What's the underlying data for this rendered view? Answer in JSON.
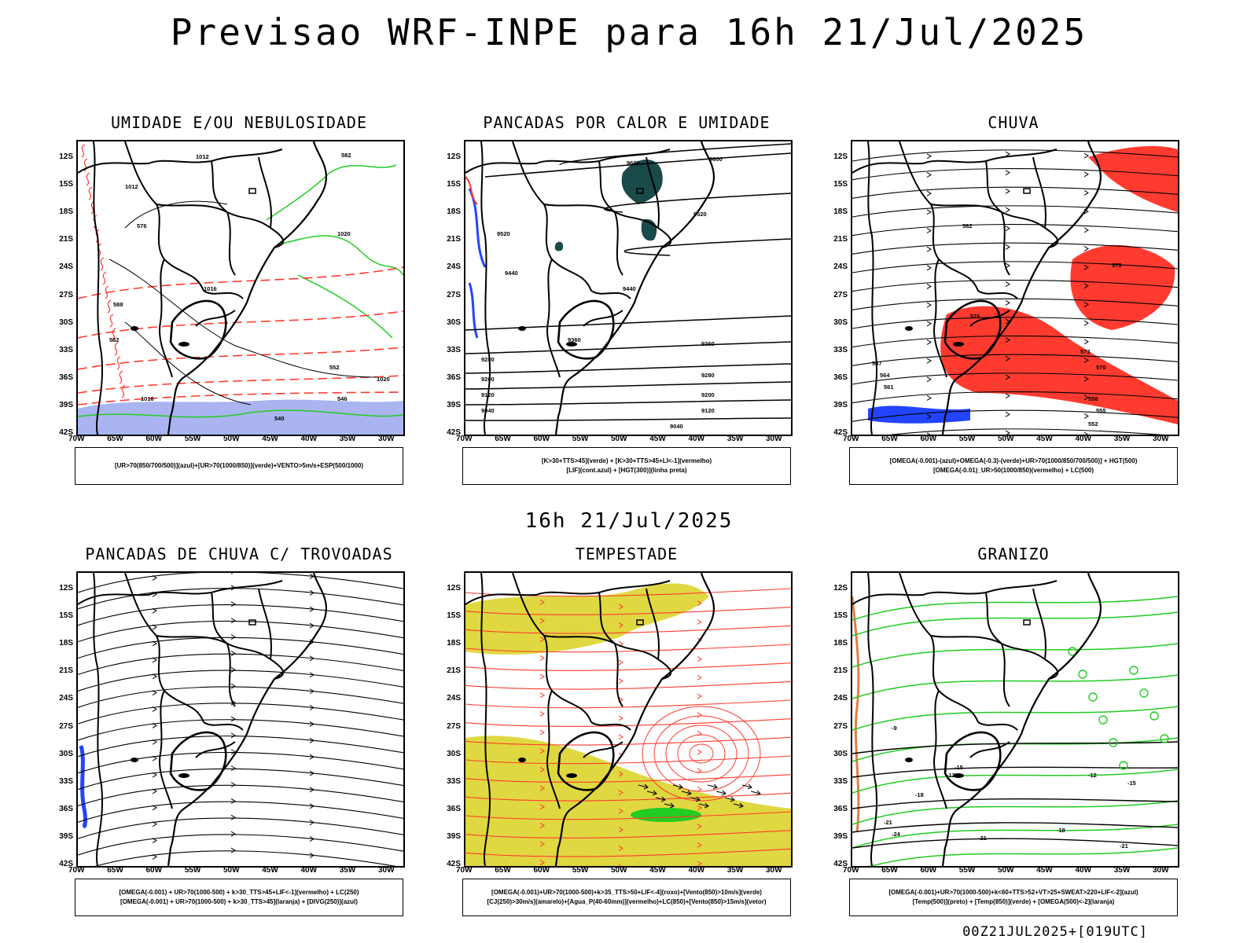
{
  "header": {
    "title": "Previsao WRF-INPE  para 16h 21/Jul/2025",
    "mid_title": "16h 21/Jul/2025",
    "footer": "00Z21JUL2025+[019UTC]"
  },
  "axes": {
    "lat_labels": [
      "12S",
      "15S",
      "18S",
      "21S",
      "24S",
      "27S",
      "30S",
      "33S",
      "36S",
      "39S",
      "42S"
    ],
    "lon_labels": [
      "70W",
      "65W",
      "60W",
      "55W",
      "50W",
      "45W",
      "40W",
      "35W",
      "30W"
    ]
  },
  "colors": {
    "red": "#ff3b30",
    "green": "#22cc22",
    "blue": "#2244ff",
    "dark_teal": "#1a4a4a",
    "yellow": "#e0d840",
    "lavender": "#aab4f0",
    "orange": "#e08040"
  },
  "panels": [
    {
      "title": "UMIDADE E/OU NEBULOSIDADE",
      "legend": [
        "[UR>70(850/700/500)](azul)+[UR>70(1000/850)](verde)+VENTO>5m/s+ESP(500/1000)"
      ],
      "labels": [
        "1012",
        "1016",
        "1020",
        "1012",
        "576",
        "582",
        "588",
        "552",
        "552",
        "546",
        "540",
        "1016",
        "1020"
      ]
    },
    {
      "title": "PANCADAS POR CALOR E UMIDADE",
      "legend": [
        "[K>30+TTS>45](verde) + [K>30+TTS>45+LI<-1](vermelho)",
        "[LIF](cont.azul) + [HGT(300)](linha preta)"
      ],
      "labels": [
        "9600",
        "9600",
        "9520",
        "9520",
        "9440",
        "9440",
        "9360",
        "9360",
        "9280",
        "9280",
        "9200",
        "9200",
        "9120",
        "9120",
        "9040",
        "9040"
      ]
    },
    {
      "title": "CHUVA",
      "legend": [
        "[OMEGA(-0.001)-(azul)+OMEGA(-0.3)-(verde)+UR>70(1000/850/700/500)] + HGT(500)",
        "[OMEGA(-0.01)_UR>50(1000/850)(vermelho) + LC(500)"
      ],
      "labels": [
        "582",
        "579",
        "576",
        "573",
        "570",
        "567",
        "564",
        "561",
        "558",
        "555",
        "552"
      ]
    },
    {
      "title": "PANCADAS DE CHUVA C/ TROVOADAS",
      "legend": [
        "[OMEGA(-0.001) + UR>70(1000-500) + k>30_TTS>45+LIF<-1](vermelho) + LC(250)",
        "[OMEGA(-0.001) + UR>70(1000-500) + k>30_TTS>45](laranja) + [DIVG(250)](azul)"
      ],
      "labels": []
    },
    {
      "title": "TEMPESTADE",
      "legend": [
        "[OMEGA(-0.001)+UR>70(1000-500)+k>35_TTS>50+LIF<-4](roxo)+[Vento(850)>10m/s](verde)",
        "[CJ(250)>30m/s](amarelo)+[Agua_P(40-60mm)](vermelho)+LC(850)+[Vento(850)>15m/s](vetor)"
      ],
      "labels": []
    },
    {
      "title": "GRANIZO",
      "legend": [
        "[OMEGA(-0.001)+UR>70(1000-500)+k<60+TTS>52+VT>25+SWEAT>220+LIF<-2](azul)",
        "[Temp(500)](preto) + [Temp(850)](verde) + [OMEGA(500)<-2](laranja)"
      ],
      "labels": [
        "-9",
        "-12",
        "-12",
        "-15",
        "-15",
        "-18",
        "-18",
        "-21",
        "-21",
        "-21",
        "-24"
      ]
    }
  ]
}
